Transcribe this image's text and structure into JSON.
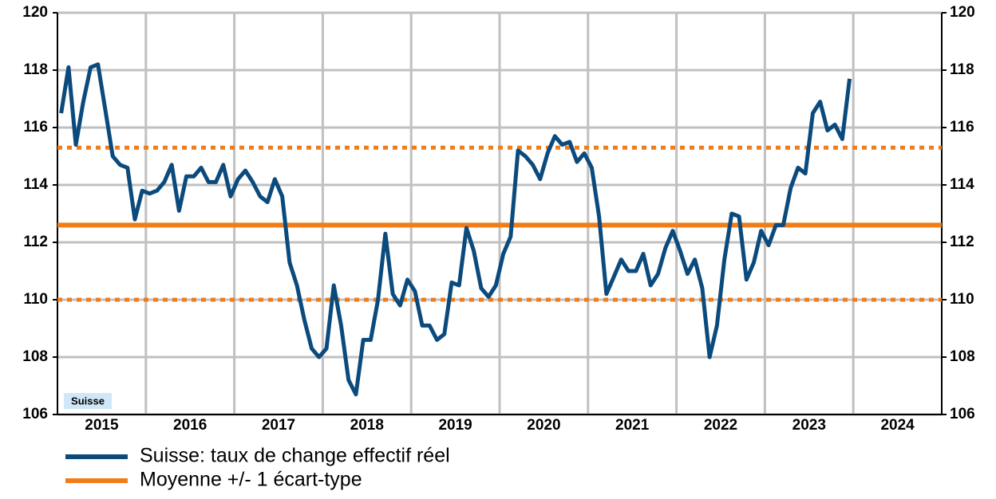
{
  "chart_data": {
    "type": "line",
    "annotation": "Suisse",
    "x": [
      2015.042,
      2015.125,
      2015.208,
      2015.292,
      2015.375,
      2015.458,
      2015.542,
      2015.625,
      2015.708,
      2015.792,
      2015.875,
      2015.958,
      2016.042,
      2016.125,
      2016.208,
      2016.292,
      2016.375,
      2016.458,
      2016.542,
      2016.625,
      2016.708,
      2016.792,
      2016.875,
      2016.958,
      2017.042,
      2017.125,
      2017.208,
      2017.292,
      2017.375,
      2017.458,
      2017.542,
      2017.625,
      2017.708,
      2017.792,
      2017.875,
      2017.958,
      2018.042,
      2018.125,
      2018.208,
      2018.292,
      2018.375,
      2018.458,
      2018.542,
      2018.625,
      2018.708,
      2018.792,
      2018.875,
      2018.958,
      2019.042,
      2019.125,
      2019.208,
      2019.292,
      2019.375,
      2019.458,
      2019.542,
      2019.625,
      2019.708,
      2019.792,
      2019.875,
      2019.958,
      2020.042,
      2020.125,
      2020.208,
      2020.292,
      2020.375,
      2020.458,
      2020.542,
      2020.625,
      2020.708,
      2020.792,
      2020.875,
      2020.958,
      2021.042,
      2021.125,
      2021.208,
      2021.292,
      2021.375,
      2021.458,
      2021.542,
      2021.625,
      2021.708,
      2021.792,
      2021.875,
      2021.958,
      2022.042,
      2022.125,
      2022.208,
      2022.292,
      2022.375,
      2022.458,
      2022.542,
      2022.625,
      2022.708,
      2022.792,
      2022.875,
      2022.958,
      2023.042,
      2023.125,
      2023.208,
      2023.292,
      2023.375,
      2023.458,
      2023.542,
      2023.625,
      2023.708,
      2023.792,
      2023.875,
      2023.958
    ],
    "series": [
      {
        "name": "Suisse: taux de change effectif réel",
        "color": "#0b4a7d",
        "values": [
          116.5,
          118.1,
          115.4,
          116.9,
          118.1,
          118.2,
          116.6,
          115.0,
          114.7,
          114.6,
          112.8,
          113.8,
          113.7,
          113.8,
          114.1,
          114.7,
          113.1,
          114.3,
          114.3,
          114.6,
          114.1,
          114.1,
          114.7,
          113.6,
          114.2,
          114.5,
          114.1,
          113.6,
          113.4,
          114.2,
          113.6,
          111.3,
          110.5,
          109.3,
          108.3,
          108.0,
          108.3,
          110.5,
          109.1,
          107.2,
          106.7,
          108.6,
          108.6,
          110.0,
          112.3,
          110.2,
          109.8,
          110.7,
          110.3,
          109.1,
          109.1,
          108.6,
          108.8,
          110.6,
          110.5,
          112.5,
          111.7,
          110.4,
          110.1,
          110.5,
          111.6,
          112.2,
          115.2,
          115.0,
          114.7,
          114.2,
          115.1,
          115.7,
          115.4,
          115.5,
          114.8,
          115.1,
          114.6,
          112.9,
          110.2,
          110.8,
          111.4,
          111.0,
          111.0,
          111.6,
          110.5,
          110.9,
          111.8,
          112.4,
          111.7,
          110.9,
          111.4,
          110.4,
          108.0,
          109.1,
          111.4,
          113.0,
          112.9,
          110.7,
          111.3,
          112.4,
          111.9,
          112.6,
          112.6,
          113.9,
          114.6,
          114.4,
          116.5,
          116.9,
          115.9,
          116.1,
          115.6,
          117.7
        ]
      }
    ],
    "reference_lines": {
      "name": "Moyenne +/- 1 écart-type",
      "color": "#f07d1a",
      "values": [
        110.0,
        112.6,
        115.3
      ],
      "styles": [
        "dotted",
        "solid",
        "dotted"
      ]
    },
    "xlim": [
      2015,
      2025
    ],
    "xticks": [
      {
        "value": 2015.5,
        "label": "2015"
      },
      {
        "value": 2016.5,
        "label": "2016"
      },
      {
        "value": 2017.5,
        "label": "2017"
      },
      {
        "value": 2018.5,
        "label": "2018"
      },
      {
        "value": 2019.5,
        "label": "2019"
      },
      {
        "value": 2020.5,
        "label": "2020"
      },
      {
        "value": 2021.5,
        "label": "2021"
      },
      {
        "value": 2022.5,
        "label": "2022"
      },
      {
        "value": 2023.5,
        "label": "2023"
      },
      {
        "value": 2024.5,
        "label": "2024"
      }
    ],
    "xgrid": [
      2016,
      2017,
      2018,
      2019,
      2020,
      2021,
      2022,
      2023,
      2024
    ],
    "ylim": [
      106,
      120
    ],
    "yticks": [
      106,
      108,
      110,
      112,
      114,
      116,
      118,
      120
    ],
    "y2lim": [
      106,
      120
    ],
    "y2ticks": [
      106,
      108,
      110,
      112,
      114,
      116,
      118,
      120
    ],
    "grid": true
  }
}
